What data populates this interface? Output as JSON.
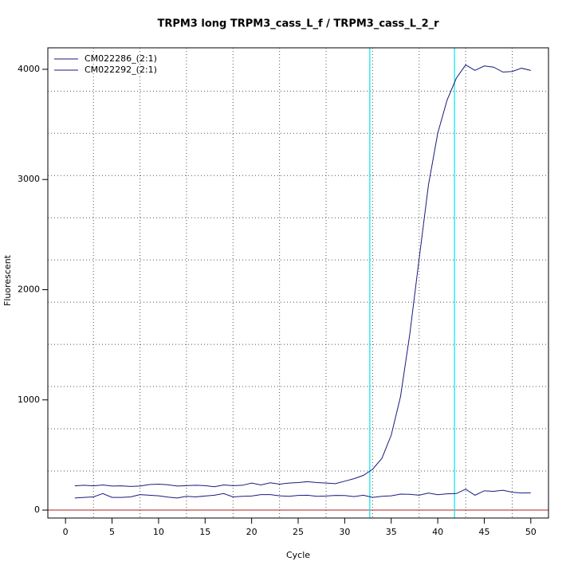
{
  "chart_data": {
    "type": "line",
    "title": "TRPM3 long TRPM3_cass_L_f / TRPM3_cass_L_2_r",
    "x_label": "Cycle",
    "y_label": "Fluorescent",
    "x": [
      1,
      2,
      3,
      4,
      5,
      6,
      7,
      8,
      9,
      10,
      11,
      12,
      13,
      14,
      15,
      16,
      17,
      18,
      19,
      20,
      21,
      22,
      23,
      24,
      25,
      26,
      27,
      28,
      29,
      30,
      31,
      32,
      33,
      34,
      35,
      36,
      37,
      38,
      39,
      40,
      41,
      42,
      43,
      44,
      45,
      46,
      47,
      48,
      49,
      50
    ],
    "series": [
      {
        "name": "CM022286_(2:1)",
        "color": "#1a1a80",
        "values": [
          220,
          225,
          220,
          228,
          218,
          220,
          215,
          218,
          232,
          235,
          230,
          218,
          222,
          225,
          222,
          212,
          228,
          222,
          225,
          245,
          228,
          248,
          235,
          245,
          250,
          258,
          250,
          245,
          240,
          262,
          285,
          315,
          370,
          470,
          680,
          1030,
          1600,
          2280,
          2950,
          3420,
          3720,
          3920,
          4040,
          3990,
          4030,
          4020,
          3975,
          3980,
          4010,
          3990
        ]
      },
      {
        "name": "CM022292_(2:1)",
        "color": "#1a1a80",
        "values": [
          110,
          115,
          120,
          150,
          115,
          115,
          120,
          140,
          135,
          130,
          118,
          110,
          125,
          120,
          128,
          135,
          150,
          120,
          125,
          128,
          140,
          140,
          130,
          125,
          133,
          135,
          125,
          128,
          133,
          132,
          122,
          135,
          115,
          125,
          130,
          145,
          143,
          135,
          155,
          140,
          148,
          150,
          190,
          135,
          175,
          170,
          180,
          162,
          155,
          157
        ]
      }
    ],
    "xlim": [
      -1.9,
      51.9
    ],
    "ylim": [
      -72,
      4195
    ],
    "xticks": [
      0,
      5,
      10,
      15,
      20,
      25,
      30,
      35,
      40,
      45,
      50
    ],
    "yticks": [
      0,
      1000,
      2000,
      3000,
      4000
    ],
    "xgrid": [
      3,
      8,
      13,
      18,
      23,
      28,
      33,
      38,
      43,
      48
    ],
    "ygrid": [
      355,
      738,
      1121,
      1504,
      1887,
      2270,
      2653,
      3036,
      3419,
      3802
    ],
    "vlines": [
      32.7,
      41.8
    ],
    "vline_color": "#00e5ee",
    "hline": 0,
    "hline_color": "#b22222",
    "legend": "top-left"
  }
}
